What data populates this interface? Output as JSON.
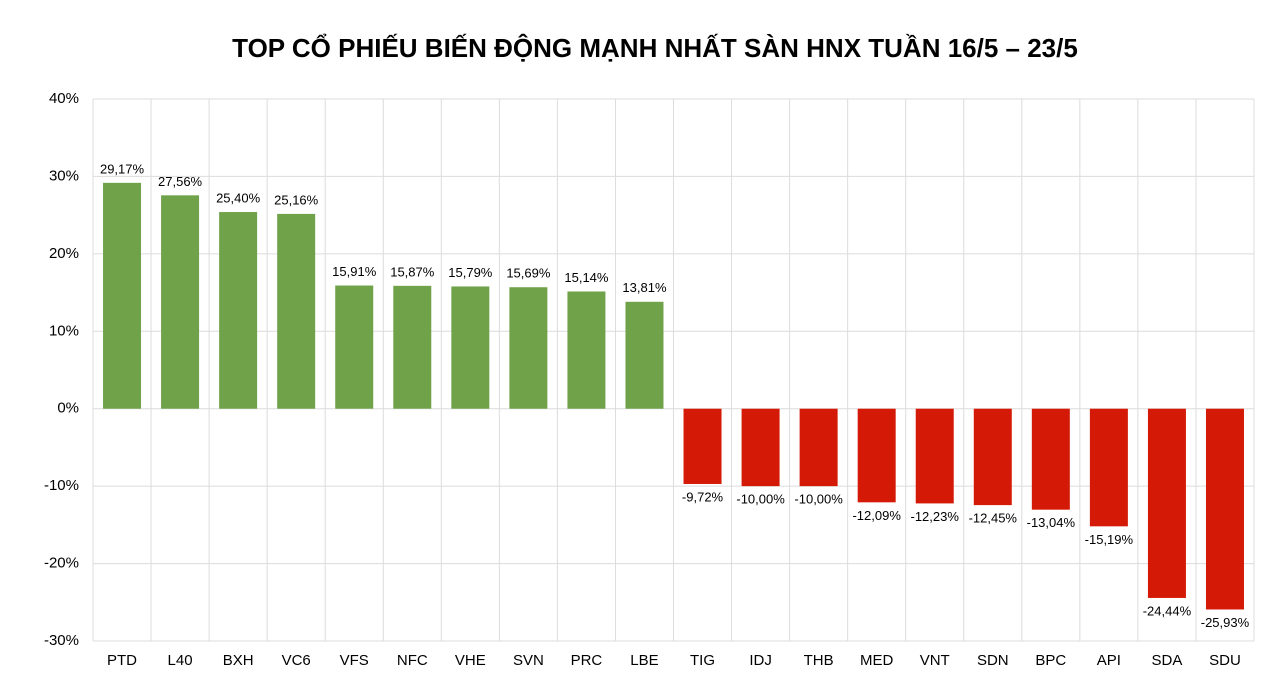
{
  "chart_data": {
    "type": "bar",
    "title": "TOP CỔ PHIẾU BIẾN ĐỘNG MẠNH NHẤT SÀN HNX TUẦN 16/5 – 23/5",
    "categories": [
      "PTD",
      "L40",
      "BXH",
      "VC6",
      "VFS",
      "NFC",
      "VHE",
      "SVN",
      "PRC",
      "LBE",
      "TIG",
      "IDJ",
      "THB",
      "MED",
      "VNT",
      "SDN",
      "BPC",
      "API",
      "SDA",
      "SDU"
    ],
    "values": [
      29.17,
      27.56,
      25.4,
      25.16,
      15.91,
      15.87,
      15.79,
      15.69,
      15.14,
      13.81,
      -9.72,
      -10.0,
      -10.0,
      -12.09,
      -12.23,
      -12.45,
      -13.04,
      -15.19,
      -24.44,
      -25.93
    ],
    "value_labels": [
      "29,17%",
      "27,56%",
      "25,40%",
      "25,16%",
      "15,91%",
      "15,87%",
      "15,79%",
      "15,69%",
      "15,14%",
      "13,81%",
      "-9,72%",
      "-10,00%",
      "-10,00%",
      "-12,09%",
      "-12,23%",
      "-12,45%",
      "-13,04%",
      "-15,19%",
      "-24,44%",
      "-25,93%"
    ],
    "positive_color": "#70a24a",
    "negative_color": "#d41a06",
    "ylim": [
      -30,
      40
    ],
    "yticks": [
      {
        "value": -30,
        "label": "-30%"
      },
      {
        "value": -20,
        "label": "-20%"
      },
      {
        "value": -10,
        "label": "-10%"
      },
      {
        "value": 0,
        "label": "0%"
      },
      {
        "value": 10,
        "label": "10%"
      },
      {
        "value": 20,
        "label": "20%"
      },
      {
        "value": 30,
        "label": "30%"
      },
      {
        "value": 40,
        "label": "40%"
      }
    ],
    "grid": true
  }
}
